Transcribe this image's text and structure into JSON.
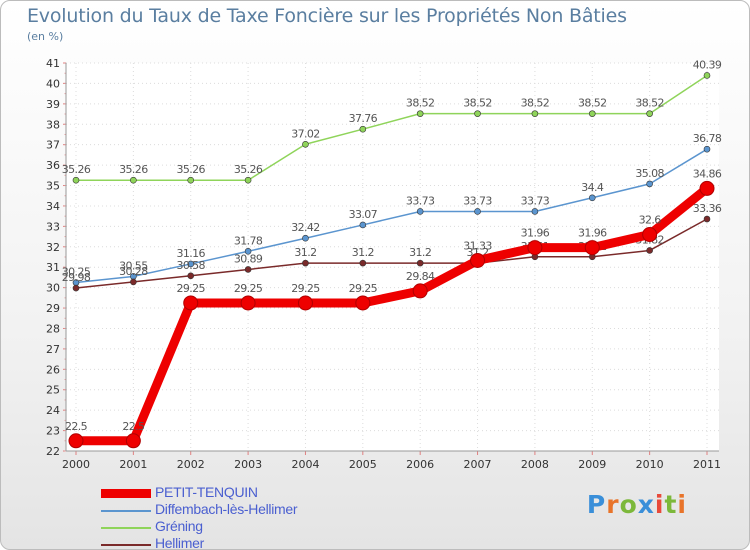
{
  "title": "Evolution du Taux de Taxe Foncière sur les Propriétés Non Bâties",
  "unit_label": "(en %)",
  "brand": {
    "text": "Proxiti",
    "letter_colors": [
      "#3a8fd9",
      "#e8742a",
      "#7cb83a",
      "#3a8fd9",
      "#e84a3a",
      "#7cb83a",
      "#e8742a"
    ]
  },
  "chart_data": {
    "type": "line",
    "title": "Evolution du Taux de Taxe Foncière sur les Propriétés Non Bâties",
    "ylabel": "(en %)",
    "xlabel": "",
    "categories": [
      "2000",
      "2001",
      "2002",
      "2003",
      "2004",
      "2005",
      "2006",
      "2007",
      "2008",
      "2009",
      "2010",
      "2011"
    ],
    "ylim": [
      22,
      41
    ],
    "yticks": [
      22,
      23,
      24,
      25,
      26,
      27,
      28,
      29,
      30,
      31,
      32,
      33,
      34,
      35,
      36,
      37,
      38,
      39,
      40,
      41
    ],
    "grid": true,
    "legend_position": "bottom-left",
    "series": [
      {
        "name": "Gréning",
        "color": "#8fd45a",
        "values": [
          35.26,
          35.26,
          35.26,
          35.26,
          37.02,
          37.76,
          38.52,
          38.52,
          38.52,
          38.52,
          38.52,
          40.39
        ],
        "labels": [
          "35.26",
          "35.26",
          "35.26",
          "35.26",
          "37.02",
          "37.76",
          "38.52",
          "38.52",
          "38.52",
          "38.52",
          "38.52",
          "40.39"
        ]
      },
      {
        "name": "Diffembach-lès-Hellimer",
        "color": "#5b95cf",
        "values": [
          30.25,
          30.55,
          31.16,
          31.78,
          32.42,
          33.07,
          33.73,
          33.73,
          33.73,
          34.4,
          35.08,
          36.78
        ],
        "labels": [
          "30.25",
          "30.55",
          "31.16",
          "31.78",
          "32.42",
          "33.07",
          "33.73",
          "33.73",
          "33.73",
          "34.4",
          "35.08",
          "36.78"
        ]
      },
      {
        "name": "Hellimer",
        "color": "#7a2a2a",
        "values": [
          29.98,
          30.28,
          30.58,
          30.89,
          31.2,
          31.2,
          31.2,
          31.2,
          31.51,
          31.51,
          31.82,
          33.36
        ],
        "labels": [
          "29.98",
          "30.28",
          "30.58",
          "30.89",
          "31.2",
          "31.2",
          "31.2",
          "31.2",
          "31.51",
          "31.51",
          "31.82",
          "33.36"
        ]
      },
      {
        "name": "PETIT-TENQUIN",
        "color": "#ee0000",
        "values": [
          22.5,
          22.5,
          29.25,
          29.25,
          29.25,
          29.25,
          29.84,
          31.33,
          31.96,
          31.96,
          32.6,
          34.86
        ],
        "labels": [
          "22.5",
          "22.5",
          "29.25",
          "29.25",
          "29.25",
          "29.25",
          "29.84",
          "31.33",
          "31.96",
          "31.96",
          "32.6",
          "34.86"
        ]
      }
    ],
    "legend": [
      "PETIT-TENQUIN",
      "Diffembach-lès-Hellimer",
      "Gréning",
      "Hellimer"
    ]
  }
}
